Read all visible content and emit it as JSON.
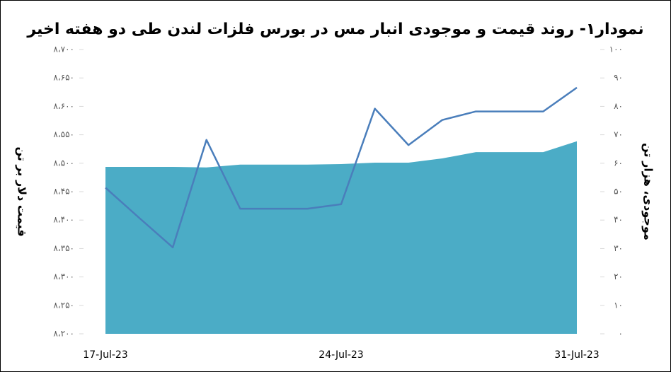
{
  "chart_data": {
    "type": "area-line",
    "title": "نمودار۱- روند قیمت و موجودی انبار مس در بورس فلزات لندن طی دو هفته اخیر",
    "y_label": "قیمت دلار بر تن",
    "y2_label": "موجودی، هزار تن",
    "categories": [
      "17-Jul-23",
      null,
      null,
      null,
      null,
      null,
      null,
      "24-Jul-23",
      null,
      null,
      null,
      null,
      null,
      null,
      "31-Jul-23"
    ],
    "series": [
      {
        "name": "موجودی",
        "type": "area",
        "axis": "y2",
        "color": "#4bacc6",
        "values": [
          58.7,
          58.7,
          58.7,
          58.5,
          59.5,
          59.5,
          59.5,
          59.7,
          60.2,
          60.2,
          61.7,
          63.9,
          63.9,
          63.9,
          67.7
        ]
      },
      {
        "name": "قیمت",
        "type": "line",
        "axis": "y",
        "color": "#4a7ebb",
        "values": [
          8457,
          8404,
          8352,
          8541,
          8420,
          8420,
          8420,
          8428,
          8596,
          8532,
          8576,
          8591,
          8591,
          8591,
          8633
        ]
      }
    ],
    "ylim": [
      8200,
      8700
    ],
    "yticks": [
      {
        "value": 8200,
        "label": "۸،۲۰۰"
      },
      {
        "value": 8250,
        "label": "۸،۲۵۰"
      },
      {
        "value": 8300,
        "label": "۸،۳۰۰"
      },
      {
        "value": 8350,
        "label": "۸،۳۵۰"
      },
      {
        "value": 8400,
        "label": "۸،۴۰۰"
      },
      {
        "value": 8450,
        "label": "۸،۴۵۰"
      },
      {
        "value": 8500,
        "label": "۸،۵۰۰"
      },
      {
        "value": 8550,
        "label": "۸،۵۵۰"
      },
      {
        "value": 8600,
        "label": "۸،۶۰۰"
      },
      {
        "value": 8650,
        "label": "۸،۶۵۰"
      },
      {
        "value": 8700,
        "label": "۸،۷۰۰"
      }
    ],
    "y2lim": [
      0,
      100
    ],
    "y2ticks": [
      {
        "value": 0,
        "label": "۰"
      },
      {
        "value": 10,
        "label": "۱۰"
      },
      {
        "value": 20,
        "label": "۲۰"
      },
      {
        "value": 30,
        "label": "۳۰"
      },
      {
        "value": 40,
        "label": "۴۰"
      },
      {
        "value": 50,
        "label": "۵۰"
      },
      {
        "value": 60,
        "label": "۶۰"
      },
      {
        "value": 70,
        "label": "۷۰"
      },
      {
        "value": 80,
        "label": "۸۰"
      },
      {
        "value": 90,
        "label": "۹۰"
      },
      {
        "value": 100,
        "label": "۱۰۰"
      }
    ]
  }
}
